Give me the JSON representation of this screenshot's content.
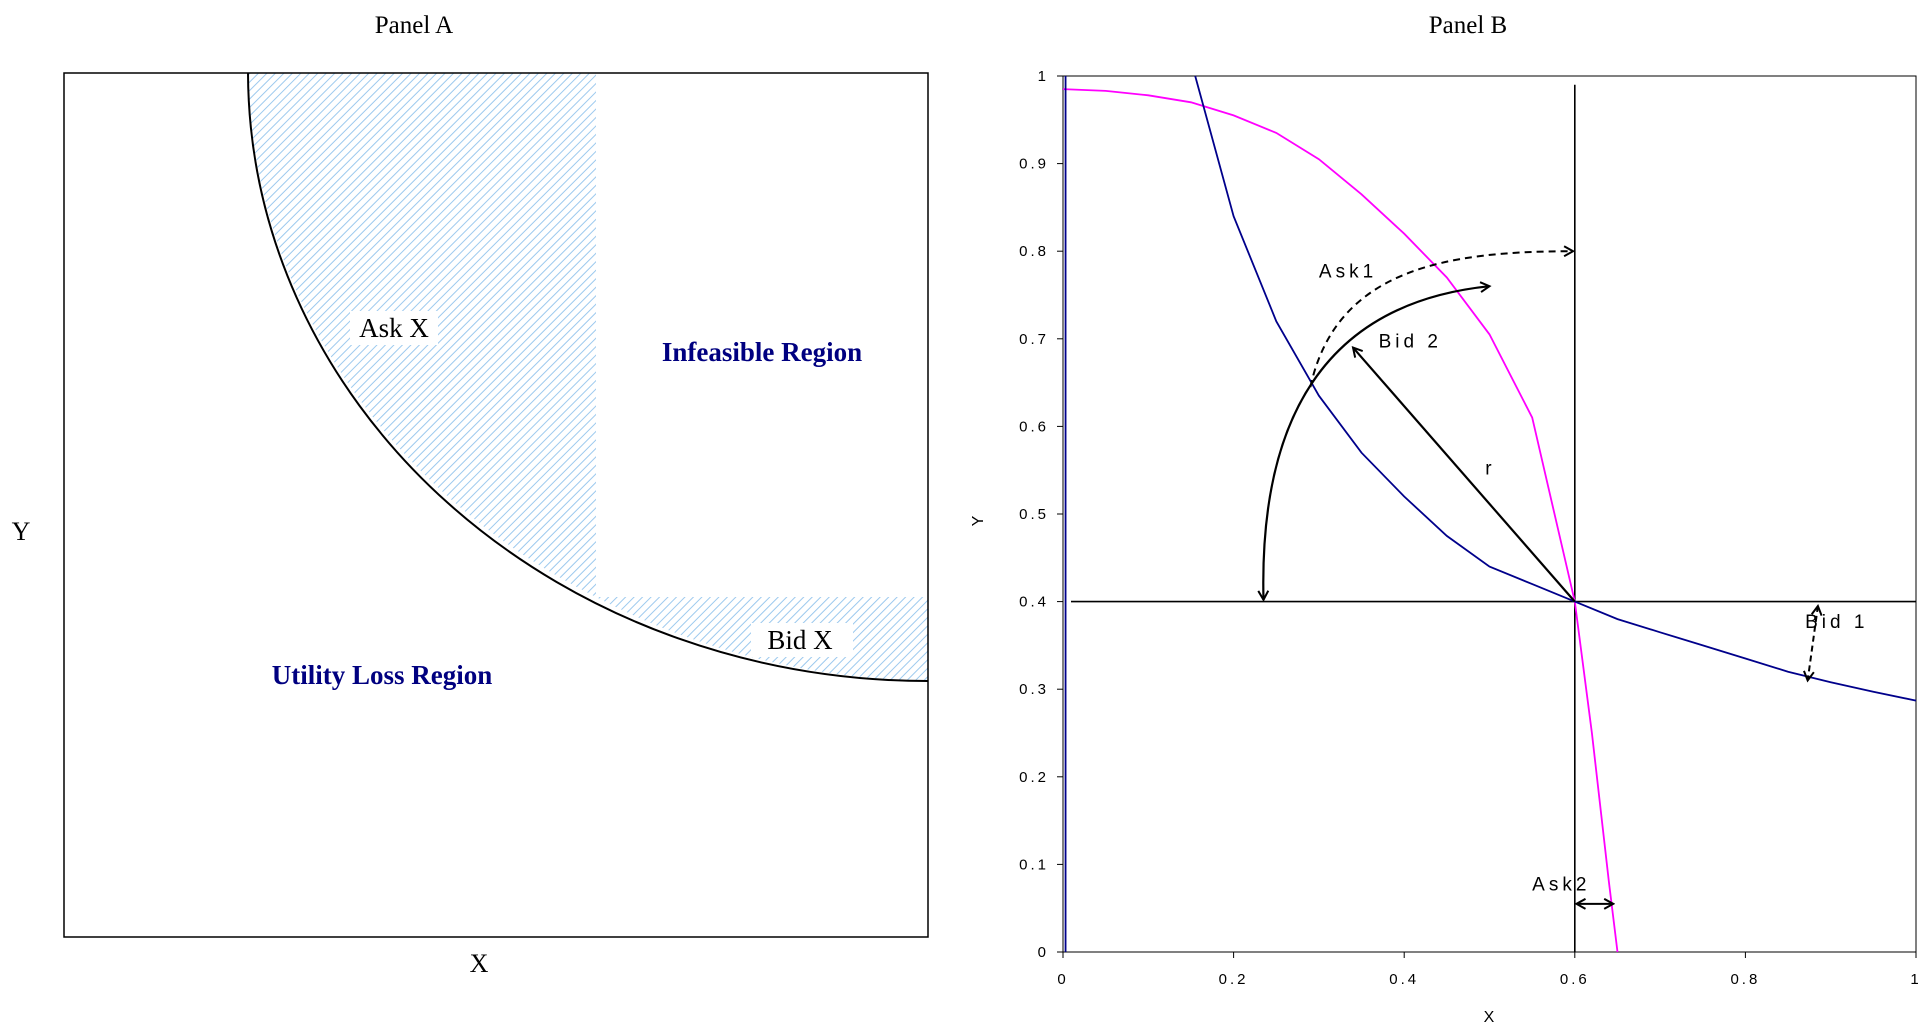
{
  "panels": {
    "a": {
      "title": "Panel A",
      "xlabel": "X",
      "ylabel": "Y",
      "labels": {
        "ask": "Ask X",
        "bid": "Bid X",
        "infeasible": "Infeasible Region",
        "utility_loss": "Utility Loss Region"
      },
      "colors": {
        "hatch": "#9cc9ee",
        "region_text": "#000080"
      }
    },
    "b": {
      "title": "Panel B",
      "xlabel": "X",
      "ylabel": "Y"
    }
  },
  "chart_data": [
    {
      "type": "area",
      "panel": "Panel A",
      "title": "Panel A",
      "xlabel": "X",
      "ylabel": "Y",
      "regions": [
        "Ask X",
        "Bid X",
        "Infeasible Region",
        "Utility Loss Region"
      ],
      "grid": false
    },
    {
      "type": "line",
      "panel": "Panel B",
      "title": "Panel B",
      "xlabel": "X",
      "ylabel": "Y",
      "xlim": [
        0,
        1
      ],
      "ylim": [
        0,
        1
      ],
      "xticks": [
        "0",
        "0.2",
        "0.4",
        "0.6",
        "0.8",
        "1"
      ],
      "yticks": [
        "0",
        "0.1",
        "0.2",
        "0.3",
        "0.4",
        "0.5",
        "0.6",
        "0.7",
        "0.8",
        "0.9",
        "1"
      ],
      "grid": false,
      "reference_point": {
        "x": 0.6,
        "y": 0.4
      },
      "reference_lines": {
        "vertical_x": 0.6,
        "horizontal_y": 0.4
      },
      "series": [
        {
          "color": "#ff00ff",
          "x": [
            0,
            0.05,
            0.1,
            0.15,
            0.2,
            0.25,
            0.3,
            0.35,
            0.4,
            0.45,
            0.5,
            0.55,
            0.6,
            0.62,
            0.64,
            0.65
          ],
          "y": [
            0.985,
            0.983,
            0.978,
            0.97,
            0.955,
            0.935,
            0.905,
            0.865,
            0.82,
            0.77,
            0.705,
            0.61,
            0.4,
            0.25,
            0.08,
            0
          ]
        },
        {
          "color": "#00008b",
          "x": [
            0.155,
            0.2,
            0.25,
            0.3,
            0.35,
            0.4,
            0.45,
            0.5,
            0.55,
            0.6,
            0.65,
            0.7,
            0.75,
            0.8,
            0.85,
            0.9,
            0.95,
            1
          ],
          "y": [
            1,
            0.84,
            0.72,
            0.635,
            0.57,
            0.52,
            0.475,
            0.44,
            0.42,
            0.4,
            0.38,
            0.365,
            0.35,
            0.335,
            0.32,
            0.308,
            0.297,
            0.287
          ]
        }
      ],
      "annotations": [
        {
          "text": "Ask1",
          "x": 0.3,
          "y": 0.77
        },
        {
          "text": "Bid 2",
          "x": 0.37,
          "y": 0.69
        },
        {
          "text": "r",
          "x": 0.495,
          "y": 0.545
        },
        {
          "text": "Bid 1",
          "x": 0.87,
          "y": 0.37
        },
        {
          "text": "Ask2",
          "x": 0.55,
          "y": 0.07
        }
      ]
    }
  ]
}
